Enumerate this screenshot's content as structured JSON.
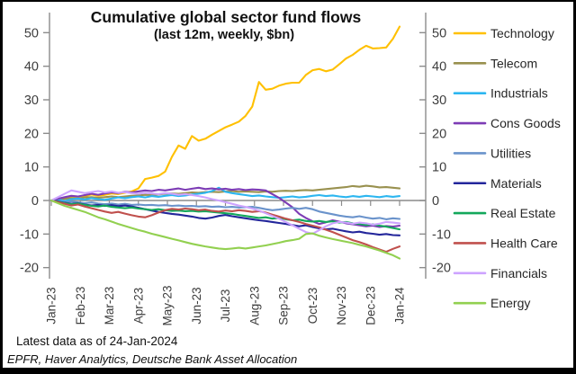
{
  "chart": {
    "title": "Cumulative global sector fund flows",
    "subtitle": "(last 12m, weekly, $bn)",
    "footer_note": "Latest data as of 24-Jan-2024",
    "source": "EPFR, Haver Analytics, Deutsche Bank Asset Allocation"
  },
  "chart_data": {
    "type": "line",
    "title": "Cumulative global sector fund flows",
    "subtitle": "(last 12m, weekly, $bn)",
    "x_unit": "weekly (53 points, Jan-23 to Jan-24)",
    "x_tick_labels": [
      "Jan-23",
      "Feb-23",
      "Mar-23",
      "Apr-23",
      "May-23",
      "Jun-23",
      "Jul-23",
      "Aug-23",
      "Sep-23",
      "Oct-23",
      "Nov-23",
      "Dec-23",
      "Jan-24"
    ],
    "y_ticks": [
      50,
      40,
      30,
      20,
      10,
      0,
      -10,
      -20
    ],
    "ylim": [
      -20,
      55
    ],
    "grid": false,
    "zero_line": true,
    "dual_y_axis": true,
    "legend_position": "right",
    "axis_color": "#8c8c8c",
    "series": [
      {
        "name": "Technology",
        "color": "#FFC000",
        "values": [
          0,
          0.4,
          0.8,
          1.2,
          0.9,
          1.3,
          1.8,
          1.4,
          1.7,
          2.1,
          1.9,
          2.3,
          2.7,
          3.6,
          6.4,
          6.8,
          7.3,
          8.6,
          13.0,
          16.4,
          15.4,
          19.2,
          17.8,
          18.4,
          19.6,
          20.7,
          21.8,
          22.6,
          23.5,
          25.2,
          28.0,
          35.3,
          33.0,
          33.3,
          34.2,
          34.8,
          35.1,
          35.1,
          37.4,
          38.8,
          39.2,
          38.5,
          39.0,
          40.6,
          42.3,
          43.4,
          44.9,
          46.1,
          45.3,
          45.4,
          45.6,
          48.2,
          51.8
        ]
      },
      {
        "name": "Telecom",
        "color": "#99914F",
        "values": [
          0,
          0.2,
          0.5,
          0.7,
          0.6,
          0.9,
          1.0,
          0.8,
          1.0,
          1.2,
          1.0,
          1.2,
          1.4,
          1.5,
          1.7,
          1.6,
          1.8,
          2.0,
          2.1,
          2.0,
          2.2,
          2.4,
          2.3,
          2.5,
          2.6,
          2.5,
          2.7,
          2.8,
          2.6,
          2.7,
          2.6,
          2.5,
          2.7,
          2.6,
          2.8,
          2.9,
          2.8,
          3.0,
          3.1,
          3.0,
          3.2,
          3.4,
          3.6,
          3.8,
          4.0,
          4.3,
          4.1,
          4.4,
          4.2,
          3.9,
          4.0,
          3.8,
          3.6
        ]
      },
      {
        "name": "Industrials",
        "color": "#2CB6F0",
        "values": [
          0,
          0.3,
          -0.2,
          0.4,
          0.6,
          0.3,
          0.7,
          0.4,
          0.2,
          0.6,
          0.9,
          0.7,
          1.0,
          1.2,
          0.9,
          1.3,
          1.1,
          1.4,
          1.6,
          1.3,
          1.5,
          1.8,
          2.0,
          2.3,
          2.8,
          3.8,
          2.6,
          2.2,
          1.9,
          1.6,
          1.3,
          1.5,
          1.2,
          1.0,
          0.8,
          1.0,
          1.2,
          0.9,
          1.1,
          1.4,
          1.6,
          1.3,
          1.5,
          1.2,
          1.0,
          1.3,
          1.1,
          1.4,
          1.2,
          1.0,
          1.3,
          1.1,
          1.3
        ]
      },
      {
        "name": "Cons Goods",
        "color": "#7D3CB5",
        "values": [
          0,
          0.5,
          1.0,
          1.4,
          1.2,
          1.6,
          2.0,
          1.7,
          2.1,
          2.4,
          2.2,
          2.6,
          2.4,
          2.7,
          3.0,
          2.8,
          3.2,
          3.0,
          3.3,
          3.6,
          3.2,
          3.5,
          3.8,
          3.4,
          3.6,
          3.3,
          3.5,
          3.2,
          3.4,
          3.1,
          3.3,
          3.2,
          3.0,
          1.9,
          0.8,
          -0.6,
          -2.0,
          -4.0,
          -5.2,
          -6.2,
          -7.0,
          -6.5,
          -5.9,
          -6.3,
          -6.8,
          -7.1,
          -7.4,
          -7.7,
          -7.5,
          -7.9,
          -7.6,
          -7.8,
          -7.5
        ]
      },
      {
        "name": "Utilities",
        "color": "#6A93CB",
        "values": [
          0,
          -0.2,
          -0.5,
          -0.3,
          -0.6,
          -0.8,
          -0.6,
          -0.9,
          -1.1,
          -0.9,
          -1.2,
          -1.0,
          -1.3,
          -1.2,
          -1.4,
          -1.3,
          -1.5,
          -1.4,
          -1.6,
          -1.5,
          -1.7,
          -1.6,
          -1.8,
          -1.7,
          -1.9,
          -1.8,
          -2.0,
          -1.9,
          -2.1,
          -2.0,
          -1.9,
          -2.2,
          -2.6,
          -2.9,
          -2.7,
          -2.4,
          -2.2,
          -2.5,
          -2.2,
          -2.6,
          -3.3,
          -3.7,
          -4.1,
          -4.5,
          -4.8,
          -5.0,
          -4.7,
          -5.1,
          -5.4,
          -5.2,
          -5.6,
          -5.3,
          -5.5
        ]
      },
      {
        "name": "Materials",
        "color": "#23269B",
        "values": [
          0,
          -0.3,
          -0.7,
          -1.0,
          -0.8,
          -1.2,
          -1.5,
          -1.3,
          -1.6,
          -1.4,
          -1.7,
          -1.5,
          -1.8,
          -2.2,
          -2.6,
          -3.0,
          -3.4,
          -3.7,
          -4.0,
          -4.2,
          -4.5,
          -4.8,
          -5.2,
          -5.4,
          -5.1,
          -4.6,
          -4.3,
          -4.7,
          -5.0,
          -5.3,
          -5.6,
          -5.9,
          -6.1,
          -6.4,
          -6.7,
          -7.0,
          -7.3,
          -7.7,
          -7.4,
          -7.9,
          -8.3,
          -8.6,
          -8.4,
          -8.8,
          -9.2,
          -9.5,
          -9.3,
          -9.7,
          -9.9,
          -10.2,
          -10.0,
          -10.3,
          -10.4
        ]
      },
      {
        "name": "Real Estate",
        "color": "#13A85B",
        "values": [
          0,
          -0.4,
          -0.8,
          -1.1,
          -0.9,
          -1.3,
          -1.6,
          -1.8,
          -1.5,
          -1.9,
          -2.1,
          -2.3,
          -2.1,
          -2.4,
          -2.6,
          -2.8,
          -2.6,
          -2.9,
          -3.1,
          -3.0,
          -3.2,
          -3.1,
          -3.3,
          -3.2,
          -3.4,
          -3.6,
          -3.8,
          -4.0,
          -4.3,
          -4.6,
          -4.9,
          -5.2,
          -5.0,
          -5.4,
          -5.2,
          -5.6,
          -5.9,
          -5.7,
          -6.1,
          -6.3,
          -6.1,
          -6.4,
          -6.2,
          -6.6,
          -6.4,
          -6.8,
          -7.0,
          -7.3,
          -7.1,
          -7.5,
          -7.8,
          -8.2,
          -8.6
        ]
      },
      {
        "name": "Health Care",
        "color": "#C0504D",
        "values": [
          0,
          -0.5,
          -1.0,
          -1.5,
          -1.2,
          -1.8,
          -2.3,
          -2.8,
          -3.3,
          -3.7,
          -3.4,
          -3.9,
          -4.4,
          -4.8,
          -5.0,
          -4.4,
          -3.6,
          -2.9,
          -2.5,
          -2.7,
          -2.4,
          -2.6,
          -2.9,
          -2.7,
          -3.1,
          -3.3,
          -3.0,
          -3.2,
          -2.9,
          -3.1,
          -3.4,
          -3.2,
          -3.6,
          -4.2,
          -4.8,
          -5.4,
          -5.9,
          -6.4,
          -7.0,
          -7.5,
          -8.0,
          -8.7,
          -9.4,
          -10.2,
          -11.0,
          -11.8,
          -12.4,
          -13.1,
          -13.9,
          -14.6,
          -15.3,
          -14.4,
          -13.7
        ]
      },
      {
        "name": "Financials",
        "color": "#CDA3FF",
        "values": [
          0,
          1.0,
          2.0,
          3.0,
          2.6,
          2.2,
          2.5,
          2.8,
          2.4,
          2.7,
          2.3,
          2.5,
          2.2,
          2.0,
          2.3,
          2.1,
          1.9,
          2.2,
          2.0,
          1.7,
          1.9,
          1.6,
          1.3,
          0.9,
          0.4,
          0.0,
          -0.5,
          -1.0,
          -1.5,
          -1.9,
          -2.4,
          -3.0,
          -3.8,
          -4.6,
          -5.4,
          -6.4,
          -7.4,
          -8.4,
          -9.4,
          -9.9,
          -8.8,
          -7.7,
          -6.8,
          -6.4,
          -6.6,
          -6.9,
          -6.6,
          -6.8,
          -7.2,
          -6.9,
          -6.4,
          -6.6,
          -6.8
        ]
      },
      {
        "name": "Energy",
        "color": "#92D050",
        "values": [
          0,
          -0.8,
          -1.6,
          -2.2,
          -2.8,
          -3.4,
          -4.2,
          -5.0,
          -5.6,
          -6.3,
          -7.0,
          -7.6,
          -8.2,
          -8.8,
          -9.3,
          -9.9,
          -10.4,
          -10.9,
          -11.4,
          -11.9,
          -12.4,
          -12.9,
          -13.3,
          -13.7,
          -14.0,
          -14.3,
          -14.5,
          -14.3,
          -14.1,
          -14.3,
          -14.0,
          -13.7,
          -13.4,
          -13.0,
          -12.6,
          -12.1,
          -11.8,
          -11.4,
          -10.0,
          -9.8,
          -10.5,
          -11.0,
          -11.5,
          -11.9,
          -12.3,
          -12.7,
          -13.2,
          -13.7,
          -14.3,
          -14.9,
          -15.6,
          -16.3,
          -17.3
        ]
      }
    ]
  }
}
